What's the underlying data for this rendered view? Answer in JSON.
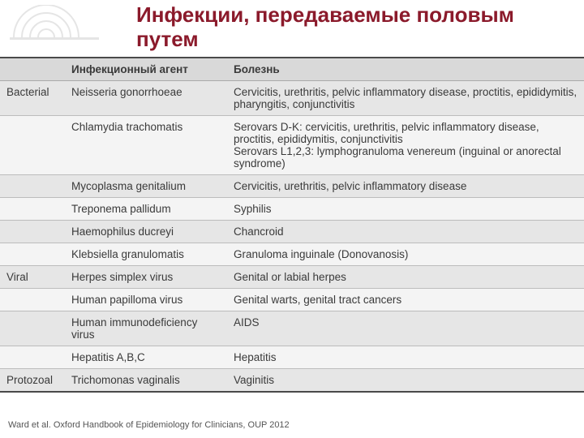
{
  "title": "Инфекции, передаваемые половым путем",
  "title_color": "#8b1a2b",
  "columns": {
    "category": "",
    "agent": "Инфекционный агент",
    "disease": "Болезнь"
  },
  "rows": [
    {
      "category": "Bacterial",
      "agent": "Neisseria gonorrhoeae",
      "disease": "Cervicitis, urethritis, pelvic inflammatory disease, proctitis, epididymitis, pharyngitis, conjunctivitis",
      "shade": "alt"
    },
    {
      "category": "",
      "agent": "Chlamydia trachomatis",
      "disease": "Serovars D-K: cervicitis, urethritis, pelvic inflammatory disease, proctitis, epididymitis, conjunctivitis\nSerovars L1,2,3: lymphogranuloma venereum (inguinal or anorectal syndrome)",
      "shade": "light"
    },
    {
      "category": "",
      "agent": "Mycoplasma genitalium",
      "disease": "Cervicitis, urethritis, pelvic inflammatory disease",
      "shade": "alt"
    },
    {
      "category": "",
      "agent": "Treponema pallidum",
      "disease": "Syphilis",
      "shade": "light"
    },
    {
      "category": "",
      "agent": "Haemophilus ducreyi",
      "disease": "Chancroid",
      "shade": "alt"
    },
    {
      "category": "",
      "agent": "Klebsiella granulomatis",
      "disease": "Granuloma inguinale (Donovanosis)",
      "shade": "light"
    },
    {
      "category": "Viral",
      "agent": "Herpes simplex virus",
      "disease": "Genital or labial herpes",
      "shade": "alt"
    },
    {
      "category": "",
      "agent": "Human papilloma virus",
      "disease": "Genital warts, genital tract cancers",
      "shade": "light"
    },
    {
      "category": "",
      "agent": "Human immunodeficiency virus",
      "disease": "AIDS",
      "shade": "alt"
    },
    {
      "category": "",
      "agent": "Hepatitis A,B,C",
      "disease": "Hepatitis",
      "shade": "light"
    },
    {
      "category": "Protozoal",
      "agent": "Trichomonas vaginalis",
      "disease": "Vaginitis",
      "shade": "alt"
    }
  ],
  "footnote": "Ward et al. Oxford Handbook of Epidemiology for Clinicians, OUP 2012",
  "styling": {
    "header_bg": "#d9d9d9",
    "row_alt_bg": "#e6e6e6",
    "row_light_bg": "#f4f4f4",
    "border_color": "#bcbcbc",
    "outer_border_color": "#4a4a4a",
    "font_size_body": 13.5,
    "font_size_title": 26,
    "font_size_footnote": 11
  }
}
